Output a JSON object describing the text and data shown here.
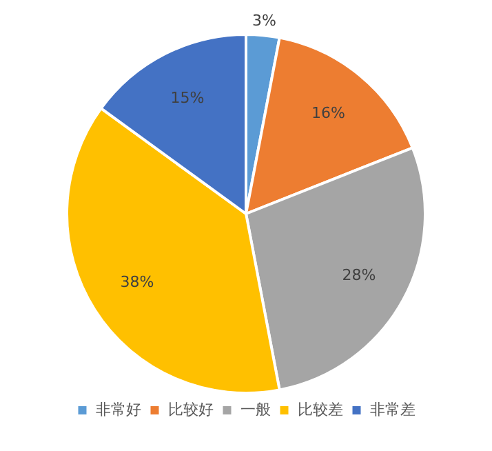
{
  "chart_data": {
    "type": "pie",
    "categories": [
      "非常好",
      "比较好",
      "一般",
      "比较差",
      "非常差"
    ],
    "values": [
      3,
      16,
      28,
      38,
      15
    ],
    "colors": [
      "#5b9bd5",
      "#ed7d31",
      "#a5a5a5",
      "#ffc000",
      "#4472c4"
    ],
    "value_labels": [
      "3%",
      "16%",
      "28%",
      "38%",
      "15%"
    ],
    "legend": "bottom"
  }
}
